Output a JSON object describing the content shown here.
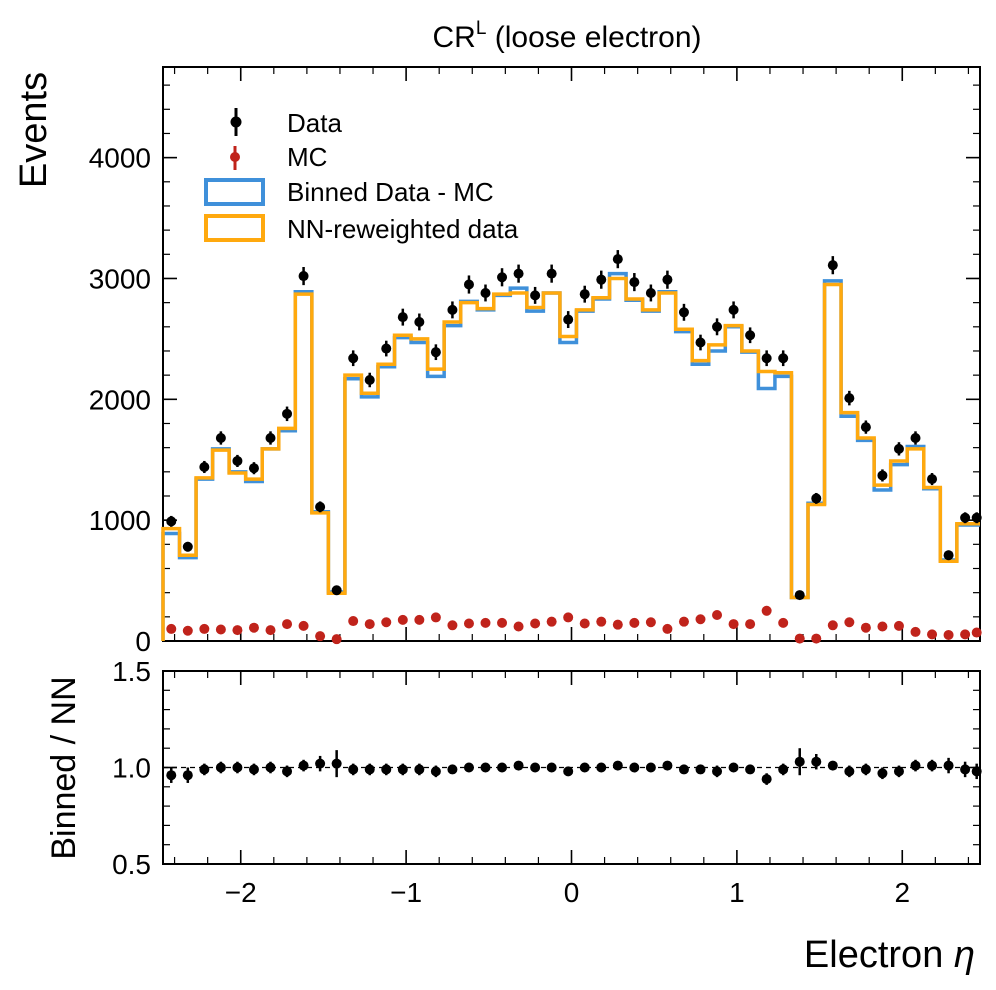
{
  "chart_data": [
    {
      "type": "histogram+errorbar",
      "title_main": "CR",
      "title_sup": "L",
      "title_rest": " (loose electron)",
      "ylabel": "Events",
      "xlim": [
        -2.47,
        2.47
      ],
      "ylim": [
        0,
        4750
      ],
      "yticks": [
        0,
        1000,
        2000,
        3000,
        4000
      ],
      "xticks": [
        -2,
        -1,
        0,
        1,
        2
      ],
      "legend_placement": "top-left",
      "bin_edges": [
        -2.47,
        -2.37,
        -2.27,
        -2.17,
        -2.07,
        -1.97,
        -1.87,
        -1.77,
        -1.67,
        -1.57,
        -1.47,
        -1.37,
        -1.27,
        -1.17,
        -1.07,
        -0.97,
        -0.87,
        -0.77,
        -0.67,
        -0.57,
        -0.47,
        -0.37,
        -0.27,
        -0.17,
        -0.07,
        0.03,
        0.13,
        0.23,
        0.33,
        0.43,
        0.53,
        0.63,
        0.73,
        0.83,
        0.93,
        1.03,
        1.13,
        1.23,
        1.33,
        1.43,
        1.53,
        1.63,
        1.73,
        1.83,
        1.93,
        2.03,
        2.13,
        2.23,
        2.33,
        2.43,
        2.47
      ],
      "series": [
        {
          "name": "Data",
          "kind": "errorbar",
          "color": "#000000",
          "x": [
            -2.42,
            -2.32,
            -2.22,
            -2.12,
            -2.02,
            -1.92,
            -1.82,
            -1.72,
            -1.62,
            -1.52,
            -1.42,
            -1.32,
            -1.22,
            -1.12,
            -1.02,
            -0.92,
            -0.82,
            -0.72,
            -0.62,
            -0.52,
            -0.42,
            -0.32,
            -0.22,
            -0.12,
            -0.02,
            0.08,
            0.18,
            0.28,
            0.38,
            0.48,
            0.58,
            0.68,
            0.78,
            0.88,
            0.98,
            1.08,
            1.18,
            1.28,
            1.38,
            1.48,
            1.58,
            1.68,
            1.78,
            1.88,
            1.98,
            2.08,
            2.18,
            2.28,
            2.38,
            2.45
          ],
          "y": [
            990,
            780,
            1440,
            1680,
            1490,
            1430,
            1680,
            1880,
            3020,
            1110,
            420,
            2340,
            2160,
            2420,
            2680,
            2640,
            2390,
            2740,
            2950,
            2880,
            3010,
            3040,
            2860,
            3040,
            2660,
            2870,
            2990,
            3160,
            2970,
            2880,
            2990,
            2720,
            2470,
            2600,
            2740,
            2530,
            2340,
            2340,
            380,
            1180,
            3110,
            2010,
            1770,
            1370,
            1590,
            1680,
            1340,
            710,
            1020,
            1020
          ],
          "yerr": [
            45,
            40,
            50,
            55,
            50,
            50,
            55,
            60,
            75,
            45,
            30,
            65,
            60,
            65,
            70,
            70,
            65,
            70,
            75,
            70,
            75,
            75,
            70,
            75,
            70,
            70,
            75,
            75,
            75,
            70,
            75,
            70,
            65,
            70,
            70,
            65,
            65,
            65,
            30,
            45,
            75,
            60,
            55,
            50,
            55,
            55,
            50,
            40,
            45,
            45
          ]
        },
        {
          "name": "MC",
          "kind": "errorbar",
          "color": "#c0231b",
          "x": [
            -2.42,
            -2.32,
            -2.22,
            -2.12,
            -2.02,
            -1.92,
            -1.82,
            -1.72,
            -1.62,
            -1.52,
            -1.42,
            -1.32,
            -1.22,
            -1.12,
            -1.02,
            -0.92,
            -0.82,
            -0.72,
            -0.62,
            -0.52,
            -0.42,
            -0.32,
            -0.22,
            -0.12,
            -0.02,
            0.08,
            0.18,
            0.28,
            0.38,
            0.48,
            0.58,
            0.68,
            0.78,
            0.88,
            0.98,
            1.08,
            1.18,
            1.28,
            1.38,
            1.48,
            1.58,
            1.68,
            1.78,
            1.88,
            1.98,
            2.08,
            2.18,
            2.28,
            2.38,
            2.45
          ],
          "y": [
            100,
            85,
            100,
            95,
            90,
            110,
            90,
            140,
            125,
            40,
            15,
            165,
            140,
            155,
            175,
            175,
            195,
            130,
            145,
            150,
            150,
            120,
            145,
            160,
            195,
            145,
            160,
            135,
            150,
            155,
            100,
            160,
            180,
            215,
            140,
            140,
            250,
            150,
            20,
            20,
            130,
            155,
            110,
            120,
            125,
            75,
            55,
            50,
            55,
            70
          ],
          "yerr": [
            15,
            15,
            15,
            15,
            15,
            15,
            15,
            20,
            20,
            12,
            8,
            20,
            18,
            20,
            20,
            20,
            22,
            18,
            18,
            18,
            18,
            16,
            18,
            20,
            22,
            18,
            20,
            18,
            18,
            18,
            15,
            20,
            20,
            22,
            18,
            18,
            40,
            20,
            8,
            8,
            18,
            20,
            16,
            16,
            16,
            12,
            10,
            10,
            10,
            12
          ]
        },
        {
          "name": "Binned Data - MC",
          "kind": "step",
          "color": "#3f90da",
          "values": [
            890,
            690,
            1340,
            1590,
            1400,
            1320,
            1590,
            1740,
            2890,
            1070,
            405,
            2170,
            2020,
            2270,
            2510,
            2470,
            2190,
            2610,
            2810,
            2740,
            2860,
            2920,
            2730,
            2880,
            2470,
            2730,
            2830,
            3040,
            2820,
            2730,
            2890,
            2560,
            2290,
            2400,
            2600,
            2390,
            2090,
            2190,
            360,
            1140,
            2980,
            1860,
            1660,
            1250,
            1460,
            1610,
            1260,
            670,
            960,
            960
          ]
        },
        {
          "name": "NN-reweighted data",
          "kind": "step",
          "color": "#ffa90e",
          "values": [
            930,
            710,
            1350,
            1580,
            1390,
            1340,
            1590,
            1760,
            2870,
            1060,
            395,
            2200,
            2050,
            2290,
            2530,
            2500,
            2250,
            2640,
            2800,
            2750,
            2870,
            2880,
            2760,
            2880,
            2520,
            2740,
            2840,
            3000,
            2830,
            2740,
            2880,
            2580,
            2320,
            2450,
            2610,
            2400,
            2230,
            2220,
            360,
            1130,
            2950,
            1890,
            1680,
            1290,
            1490,
            1590,
            1270,
            660,
            970,
            970
          ]
        }
      ]
    },
    {
      "type": "errorbar",
      "ylabel": "Binned / NN",
      "xlabel_text": "Electron ",
      "xlabel_symbol": "η",
      "xlim": [
        -2.47,
        2.47
      ],
      "ylim": [
        0.5,
        1.5
      ],
      "yticks": [
        0.5,
        1.0,
        1.5
      ],
      "ytick_labels": [
        "0.5",
        "1.0",
        "1.5"
      ],
      "xticks": [
        -2,
        -1,
        0,
        1,
        2
      ],
      "xtick_labels": [
        "−2",
        "−1",
        "0",
        "1",
        "2"
      ],
      "reference_line": 1.0,
      "series": [
        {
          "name": "Binned / NN",
          "color": "#000000",
          "x": [
            -2.42,
            -2.32,
            -2.22,
            -2.12,
            -2.02,
            -1.92,
            -1.82,
            -1.72,
            -1.62,
            -1.52,
            -1.42,
            -1.32,
            -1.22,
            -1.12,
            -1.02,
            -0.92,
            -0.82,
            -0.72,
            -0.62,
            -0.52,
            -0.42,
            -0.32,
            -0.22,
            -0.12,
            -0.02,
            0.08,
            0.18,
            0.28,
            0.38,
            0.48,
            0.58,
            0.68,
            0.78,
            0.88,
            0.98,
            1.08,
            1.18,
            1.28,
            1.38,
            1.48,
            1.58,
            1.68,
            1.78,
            1.88,
            1.98,
            2.08,
            2.18,
            2.28,
            2.38,
            2.45
          ],
          "y": [
            0.96,
            0.96,
            0.99,
            1.0,
            1.0,
            0.99,
            1.0,
            0.98,
            1.01,
            1.02,
            1.02,
            0.99,
            0.99,
            0.99,
            0.99,
            0.99,
            0.98,
            0.99,
            1.0,
            1.0,
            1.0,
            1.01,
            1.0,
            1.0,
            0.98,
            1.0,
            1.0,
            1.01,
            1.0,
            1.0,
            1.01,
            0.99,
            0.99,
            0.98,
            1.0,
            0.99,
            0.94,
            0.99,
            1.03,
            1.03,
            1.01,
            0.98,
            0.99,
            0.97,
            0.98,
            1.01,
            1.01,
            1.01,
            0.99,
            0.98
          ],
          "yerr": [
            0.04,
            0.04,
            0.03,
            0.03,
            0.03,
            0.03,
            0.03,
            0.03,
            0.03,
            0.04,
            0.07,
            0.03,
            0.03,
            0.03,
            0.03,
            0.03,
            0.03,
            0.02,
            0.02,
            0.02,
            0.02,
            0.02,
            0.02,
            0.02,
            0.02,
            0.02,
            0.02,
            0.02,
            0.02,
            0.02,
            0.02,
            0.02,
            0.02,
            0.03,
            0.02,
            0.02,
            0.03,
            0.03,
            0.07,
            0.04,
            0.02,
            0.03,
            0.03,
            0.03,
            0.03,
            0.03,
            0.03,
            0.04,
            0.04,
            0.04
          ]
        }
      ]
    }
  ]
}
